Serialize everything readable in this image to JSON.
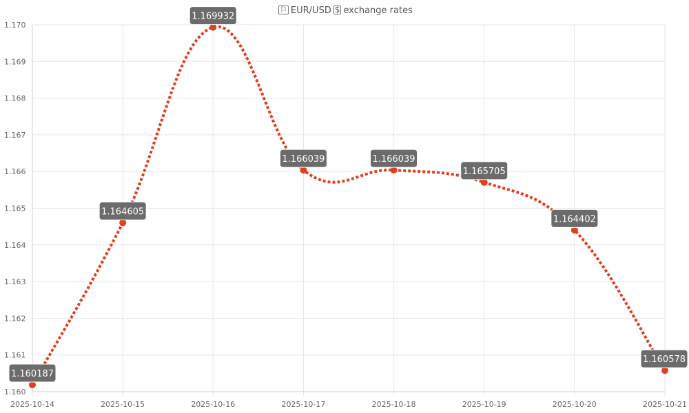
{
  "chart_data": {
    "type": "line",
    "title_prefix_icon": "map-icon",
    "title": "EUR/USD",
    "title_suffix_icon": "money-icon",
    "subtitle": "exchange rates",
    "categories": [
      "2025-10-14",
      "2025-10-15",
      "2025-10-16",
      "2025-10-17",
      "2025-10-18",
      "2025-10-19",
      "2025-10-20",
      "2025-10-21"
    ],
    "values": [
      1.160187,
      1.164605,
      1.169932,
      1.166039,
      1.166039,
      1.165705,
      1.164402,
      1.160578
    ],
    "value_labels": [
      "1.160187",
      "1.164605",
      "1.169932",
      "1.166039",
      "1.166039",
      "1.165705",
      "1.164402",
      "1.160578"
    ],
    "ylim": [
      1.16,
      1.17
    ],
    "y_ticks": [
      "1.160",
      "1.161",
      "1.162",
      "1.163",
      "1.164",
      "1.165",
      "1.166",
      "1.167",
      "1.168",
      "1.169",
      "1.170"
    ],
    "grid": true,
    "line_style": "dotted",
    "line_color": "#e0401f",
    "label_bg_color": "#6b6b6b"
  }
}
